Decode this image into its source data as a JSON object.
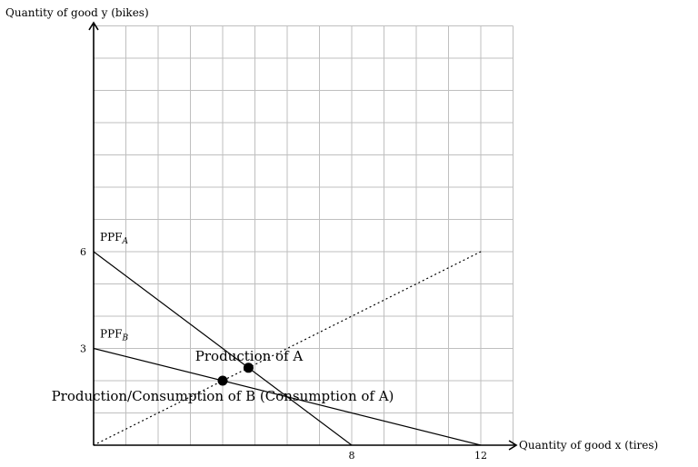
{
  "chart_data": {
    "type": "line",
    "ylabel": "Quantity of good y (bikes)",
    "xlabel": "Quantity of good x (tires)",
    "xlim": [
      0,
      13
    ],
    "ylim": [
      0,
      13
    ],
    "grid": true,
    "x_ticks": [
      8,
      12
    ],
    "y_ticks": [
      6,
      3
    ],
    "series": [
      {
        "name": "PPF",
        "name_sub": "A",
        "x": [
          0,
          8
        ],
        "y": [
          6,
          0
        ],
        "style": "solid"
      },
      {
        "name": "PPF",
        "name_sub": "B",
        "x": [
          0,
          12
        ],
        "y": [
          3,
          0
        ],
        "style": "solid"
      },
      {
        "x": [
          0,
          12
        ],
        "y": [
          0,
          6
        ],
        "style": "dotted"
      }
    ],
    "points": [
      {
        "x": 4.8,
        "y": 2.4,
        "label": "Production of A"
      },
      {
        "x": 4,
        "y": 2,
        "label": "Production/Consumption of B (Consumption of A)"
      }
    ],
    "colors": {
      "line": "#000000",
      "grid": "#bfbfbf"
    }
  }
}
